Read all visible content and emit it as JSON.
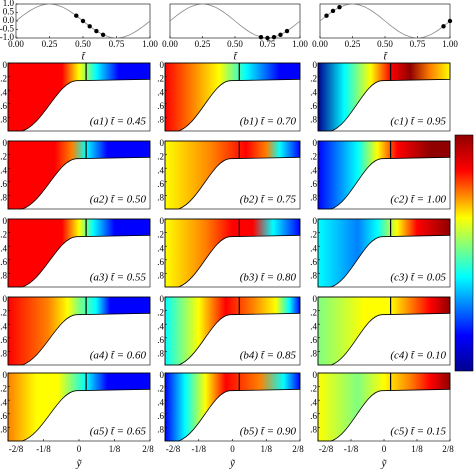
{
  "chart_data": [
    {
      "type": "line",
      "color": "#888888",
      "x": [
        0,
        0.05,
        0.1,
        0.15,
        0.2,
        0.25,
        0.3,
        0.35,
        0.4,
        0.45,
        0.5,
        0.55,
        0.6,
        0.65,
        0.7,
        0.75,
        0.8,
        0.85,
        0.9,
        0.95,
        1
      ],
      "values": [
        0,
        0.31,
        0.59,
        0.81,
        0.95,
        1,
        0.95,
        0.81,
        0.59,
        0.31,
        0,
        -0.31,
        -0.59,
        -0.81,
        -0.95,
        -1,
        -0.95,
        -0.81,
        -0.59,
        -0.31,
        0
      ],
      "points": {
        "color": "#000000",
        "x": [
          0.45,
          0.5,
          0.55,
          0.6,
          0.65
        ],
        "values": [
          0.31,
          0,
          -0.31,
          -0.59,
          -0.81
        ]
      },
      "xlim": [
        0,
        1
      ],
      "xticks": [
        {
          "value": 0,
          "label": "0.00"
        },
        {
          "value": 0.25,
          "label": "0.25"
        },
        {
          "value": 0.5,
          "label": "0.50"
        },
        {
          "value": 0.75,
          "label": "0.75"
        },
        {
          "value": 1,
          "label": "1.00"
        }
      ],
      "ylim": [
        -1,
        1
      ],
      "yticks": [
        {
          "value": 1,
          "label": "1.0"
        },
        {
          "value": 0.5,
          "label": "0.5"
        },
        {
          "value": 0,
          "label": "0.0"
        },
        {
          "value": -0.5,
          "label": "-0.5"
        },
        {
          "value": -1,
          "label": "-1.0"
        }
      ],
      "xlabel": "t̃"
    },
    {
      "type": "line",
      "color": "#888888",
      "x": [
        0,
        0.05,
        0.1,
        0.15,
        0.2,
        0.25,
        0.3,
        0.35,
        0.4,
        0.45,
        0.5,
        0.55,
        0.6,
        0.65,
        0.7,
        0.75,
        0.8,
        0.85,
        0.9,
        0.95,
        1
      ],
      "values": [
        0,
        0.31,
        0.59,
        0.81,
        0.95,
        1,
        0.95,
        0.81,
        0.59,
        0.31,
        0,
        -0.31,
        -0.59,
        -0.81,
        -0.95,
        -1,
        -0.95,
        -0.81,
        -0.59,
        -0.31,
        0
      ],
      "points": {
        "color": "#000000",
        "x": [
          0.7,
          0.75,
          0.8,
          0.85,
          0.9
        ],
        "values": [
          -0.95,
          -1,
          -0.95,
          -0.81,
          -0.59
        ]
      },
      "xlim": [
        0,
        1
      ],
      "xticks": [
        {
          "value": 0,
          "label": "0.00"
        },
        {
          "value": 0.25,
          "label": "0.25"
        },
        {
          "value": 0.5,
          "label": "0.50"
        },
        {
          "value": 0.75,
          "label": "0.75"
        },
        {
          "value": 1,
          "label": "1.00"
        }
      ],
      "ylim": [
        -1,
        1
      ],
      "yticks": [],
      "xlabel": "t̃"
    },
    {
      "type": "line",
      "color": "#888888",
      "x": [
        0,
        0.05,
        0.1,
        0.15,
        0.2,
        0.25,
        0.3,
        0.35,
        0.4,
        0.45,
        0.5,
        0.55,
        0.6,
        0.65,
        0.7,
        0.75,
        0.8,
        0.85,
        0.9,
        0.95,
        1
      ],
      "values": [
        0,
        0.31,
        0.59,
        0.81,
        0.95,
        1,
        0.95,
        0.81,
        0.59,
        0.31,
        0,
        -0.31,
        -0.59,
        -0.81,
        -0.95,
        -1,
        -0.95,
        -0.81,
        -0.59,
        -0.31,
        0
      ],
      "points": {
        "color": "#000000",
        "x": [
          0.95,
          1,
          0.05,
          0.1,
          0.15
        ],
        "values": [
          -0.31,
          0,
          0.31,
          0.59,
          0.81
        ]
      },
      "xlim": [
        0,
        1
      ],
      "xticks": [
        {
          "value": 0,
          "label": "0.00"
        },
        {
          "value": 0.25,
          "label": "0.25"
        },
        {
          "value": 0.5,
          "label": "0.50"
        },
        {
          "value": 0.75,
          "label": "0.75"
        },
        {
          "value": 1,
          "label": "1.00"
        }
      ],
      "ylim": [
        -1,
        1
      ],
      "yticks": [],
      "xlabel": "t̃"
    }
  ],
  "heatmaps": {
    "xlim": [
      -0.25,
      0.25
    ],
    "xticks": [
      {
        "value": -0.25,
        "label": "-2/8"
      },
      {
        "value": -0.125,
        "label": "-1/8"
      },
      0,
      {
        "value": 0.125,
        "label": "1/8"
      },
      {
        "value": 0.25,
        "label": "2/8"
      }
    ],
    "xlabel": "ỹ",
    "ylim": [
      0,
      1
    ],
    "yticks": [
      0,
      {
        "value": 0.2,
        "label": ".2"
      },
      {
        "value": 0.4,
        "label": ".4"
      },
      {
        "value": 0.6,
        "label": ".6"
      },
      {
        "value": 0.8,
        "label": ".8"
      }
    ],
    "panels": [
      "(a1) t̃ = 0.45",
      "(a2) t̃ = 0.50",
      "(a3) t̃ = 0.55",
      "(a4) t̃ = 0.60",
      "(a5) t̃ = 0.65",
      "(b1) t̃ = 0.70",
      "(b2) t̃ = 0.75",
      "(b3) t̃ = 0.80",
      "(b4) t̃ = 0.85",
      "(b5) t̃ = 0.90",
      "(c1) t̃ = 0.95",
      "(c2) t̃ = 1.00",
      "(c3) t̃ = 0.05",
      "(c4) t̃ = 0.10",
      "(c5) t̃ = 0.15"
    ]
  }
}
